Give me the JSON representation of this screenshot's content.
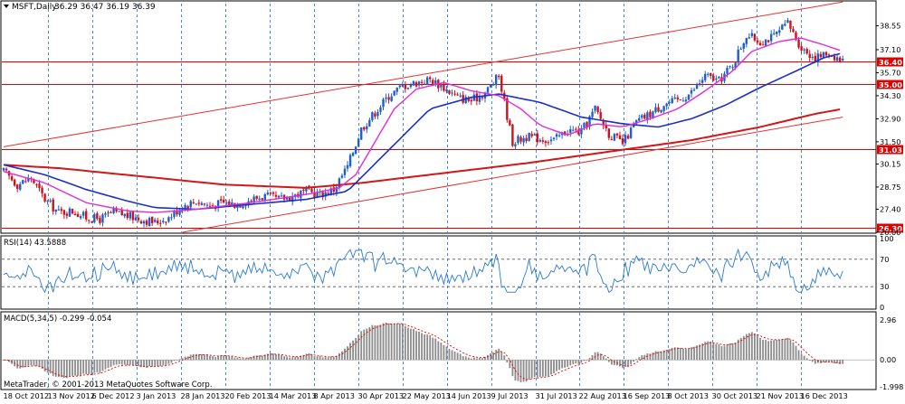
{
  "header": {
    "symbol": "MSFT,Daily",
    "ohlc": "36.29 36.47 36.19 36.39"
  },
  "colors": {
    "price_up": "#1d5fcf",
    "price_down": "#d0111b",
    "ma_fast": "#e22bd8",
    "ma_mid": "#1a2fc9",
    "ma_slow": "#d31616",
    "hline": "#e00000",
    "channel": "#e83030",
    "grid": "#1f6fd6",
    "rsi_line": "#2a7ad6",
    "macd_bar": "#8c8c8c",
    "macd_signal": "#e00000",
    "axis": "#000000"
  },
  "chart_data": [
    {
      "type": "candlestick",
      "ylim": [
        26.0,
        39.9
      ],
      "price_ticks": [
        "38.55",
        "37.10",
        "35.70",
        "34.30",
        "32.90",
        "31.50",
        "30.15",
        "28.75",
        "27.40",
        "26.00"
      ],
      "price_tick_values": [
        38.55,
        37.1,
        35.7,
        34.3,
        32.9,
        31.5,
        30.15,
        28.75,
        27.4,
        26.0
      ],
      "x_labels": [
        "18 Oct 2012",
        "13 Nov 2012",
        "6 Dec 2012",
        "3 Jan 2013",
        "28 Jan 2013",
        "20 Feb 2013",
        "14 Mar 2013",
        "8 Apr 2013",
        "30 Apr 2013",
        "22 May 2013",
        "14 Jun 2013",
        "9 Jul 2013",
        "31 Jul 2013",
        "22 Aug 2013",
        "16 Sep 2013",
        "8 Oct 2013",
        "30 Oct 2013",
        "21 Nov 2013",
        "16 Dec 2013"
      ],
      "horizontal_levels": [
        {
          "label": "36.40",
          "value": 36.4
        },
        {
          "label": "35.00",
          "value": 35.0
        },
        {
          "label": "31.03",
          "value": 31.03
        },
        {
          "label": "26.30",
          "value": 26.3
        }
      ],
      "channel_lines": [
        {
          "from": [
            0,
            31.2
          ],
          "to": [
            305,
            40.0
          ]
        },
        {
          "from": [
            65,
            26.0
          ],
          "to": [
            305,
            33.0
          ]
        }
      ],
      "anchors": [
        [
          0,
          29.7
        ],
        [
          5,
          28.9
        ],
        [
          10,
          29.3
        ],
        [
          15,
          28.0
        ],
        [
          20,
          27.2
        ],
        [
          25,
          27.3
        ],
        [
          30,
          26.9
        ],
        [
          35,
          26.8
        ],
        [
          40,
          27.2
        ],
        [
          45,
          27.0
        ],
        [
          50,
          26.8
        ],
        [
          55,
          26.6
        ],
        [
          60,
          26.9
        ],
        [
          65,
          27.6
        ],
        [
          70,
          27.9
        ],
        [
          75,
          27.6
        ],
        [
          80,
          27.8
        ],
        [
          85,
          27.7
        ],
        [
          90,
          28.0
        ],
        [
          95,
          28.2
        ],
        [
          100,
          28.0
        ],
        [
          105,
          28.2
        ],
        [
          110,
          28.5
        ],
        [
          115,
          28.3
        ],
        [
          120,
          28.6
        ],
        [
          125,
          30.0
        ],
        [
          130,
          32.3
        ],
        [
          135,
          33.3
        ],
        [
          140,
          34.3
        ],
        [
          145,
          34.9
        ],
        [
          150,
          35.1
        ],
        [
          155,
          35.3
        ],
        [
          160,
          34.8
        ],
        [
          165,
          34.2
        ],
        [
          170,
          34.0
        ],
        [
          175,
          34.5
        ],
        [
          180,
          35.5
        ],
        [
          185,
          31.5
        ],
        [
          190,
          31.8
        ],
        [
          195,
          31.7
        ],
        [
          200,
          31.6
        ],
        [
          205,
          32.2
        ],
        [
          210,
          32.1
        ],
        [
          215,
          33.5
        ],
        [
          220,
          32.0
        ],
        [
          225,
          31.4
        ],
        [
          230,
          32.7
        ],
        [
          235,
          33.2
        ],
        [
          240,
          33.8
        ],
        [
          245,
          34.0
        ],
        [
          250,
          34.5
        ],
        [
          255,
          35.5
        ],
        [
          260,
          35.2
        ],
        [
          265,
          36.2
        ],
        [
          270,
          38.0
        ],
        [
          275,
          37.6
        ],
        [
          280,
          37.9
        ],
        [
          285,
          38.7
        ],
        [
          290,
          37.2
        ],
        [
          295,
          36.6
        ],
        [
          300,
          36.9
        ],
        [
          305,
          36.4
        ]
      ],
      "ma_fast_pts": [
        [
          0,
          29.7
        ],
        [
          15,
          29.0
        ],
        [
          30,
          27.8
        ],
        [
          45,
          27.3
        ],
        [
          55,
          27.2
        ],
        [
          70,
          27.4
        ],
        [
          90,
          27.8
        ],
        [
          110,
          28.3
        ],
        [
          122,
          28.7
        ],
        [
          128,
          29.5
        ],
        [
          135,
          31.5
        ],
        [
          142,
          33.5
        ],
        [
          150,
          34.7
        ],
        [
          160,
          35.1
        ],
        [
          170,
          34.6
        ],
        [
          180,
          34.3
        ],
        [
          188,
          33.5
        ],
        [
          195,
          32.5
        ],
        [
          205,
          31.9
        ],
        [
          215,
          32.6
        ],
        [
          225,
          32.4
        ],
        [
          235,
          32.9
        ],
        [
          245,
          33.5
        ],
        [
          255,
          34.6
        ],
        [
          265,
          35.8
        ],
        [
          272,
          37.0
        ],
        [
          282,
          37.6
        ],
        [
          290,
          37.8
        ],
        [
          298,
          37.4
        ],
        [
          305,
          37.0
        ]
      ],
      "ma_mid_pts": [
        [
          0,
          30.1
        ],
        [
          15,
          29.5
        ],
        [
          30,
          28.6
        ],
        [
          45,
          27.9
        ],
        [
          55,
          27.5
        ],
        [
          70,
          27.4
        ],
        [
          90,
          27.7
        ],
        [
          110,
          28.0
        ],
        [
          125,
          28.5
        ],
        [
          140,
          31.0
        ],
        [
          155,
          33.5
        ],
        [
          170,
          34.2
        ],
        [
          180,
          34.4
        ],
        [
          195,
          33.9
        ],
        [
          210,
          33.0
        ],
        [
          225,
          32.6
        ],
        [
          238,
          32.4
        ],
        [
          250,
          32.9
        ],
        [
          262,
          33.7
        ],
        [
          275,
          34.8
        ],
        [
          288,
          35.8
        ],
        [
          298,
          36.6
        ],
        [
          305,
          36.9
        ]
      ],
      "ma_slow_pts": [
        [
          0,
          30.1
        ],
        [
          20,
          29.9
        ],
        [
          50,
          29.4
        ],
        [
          80,
          28.9
        ],
        [
          110,
          28.7
        ],
        [
          130,
          29.0
        ],
        [
          160,
          29.6
        ],
        [
          190,
          30.2
        ],
        [
          220,
          30.9
        ],
        [
          250,
          31.6
        ],
        [
          275,
          32.4
        ],
        [
          295,
          33.2
        ],
        [
          305,
          33.5
        ]
      ]
    },
    {
      "type": "line",
      "label": "RSI(14) 43.5888",
      "ylim": [
        0,
        100
      ],
      "ticks": [
        "100",
        "70",
        "30",
        "0"
      ],
      "tick_values": [
        100,
        70,
        30,
        0
      ],
      "levels": [
        70,
        30
      ]
    },
    {
      "type": "bar",
      "label": "MACD(5,34,5) -0.299 -0.054",
      "ylim": [
        -1.998,
        2.96
      ],
      "ticks": [
        "2.96",
        "0.00",
        "-1.998"
      ],
      "tick_values": [
        2.96,
        0.0,
        -1.998
      ]
    }
  ],
  "copyright": "MetaTrader, © 2001-2013 MetaQuotes Software Corp."
}
